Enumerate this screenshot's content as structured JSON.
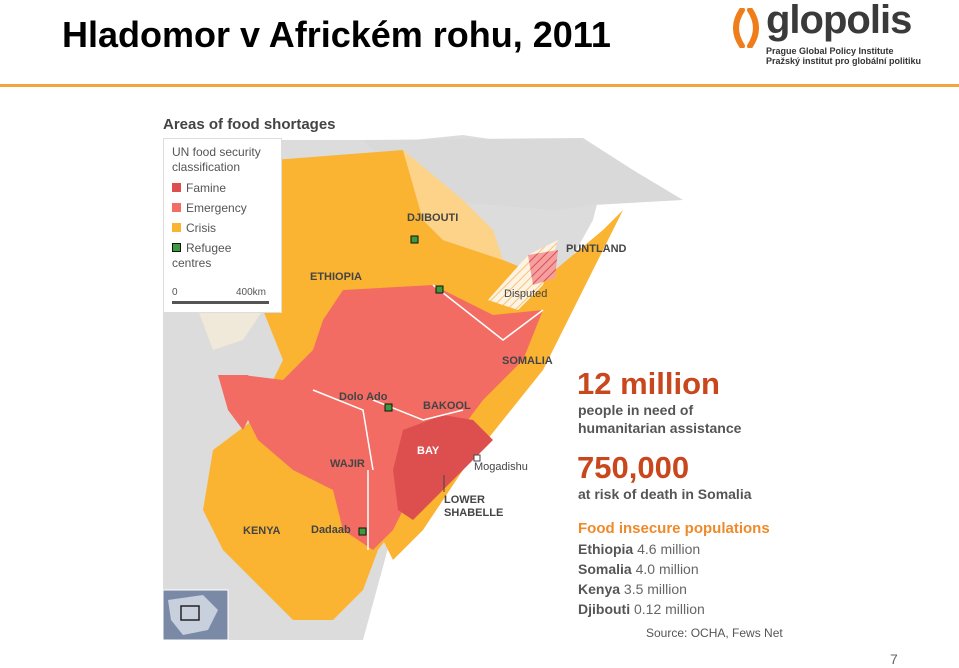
{
  "slide": {
    "title": "Hladomor v Africkém rohu, 2011",
    "page_number": "7"
  },
  "logo": {
    "word": "glopolis",
    "line1": "Prague Global Policy Institute",
    "line2": "Pražský institut pro globální politiku"
  },
  "map": {
    "heading": "Areas of food shortages",
    "legend": {
      "title": "UN food security classification",
      "items": [
        {
          "label": "Famine",
          "color": "#dd4f4f"
        },
        {
          "label": "Emergency",
          "color": "#f26c64"
        },
        {
          "label": "Crisis",
          "color": "#fbb432"
        },
        {
          "label": "Refugee centres",
          "color": "#3c9a3c"
        }
      ],
      "scale_start": "0",
      "scale_end": "400km"
    },
    "regions": {
      "djibouti": "DJIBOUTI",
      "puntland": "PUNTLAND",
      "ethiopia": "ETHIOPIA",
      "disputed": "Disputed",
      "somalia": "SOMALIA",
      "dolo_ado": "Dolo Ado",
      "bakool": "BAKOOL",
      "bay": "BAY",
      "wajir": "WAJIR",
      "mogadishu": "Mogadishu",
      "lower_shabelle_1": "LOWER",
      "lower_shabelle_2": "SHABELLE",
      "kenya": "KENYA",
      "dadaab": "Dadaab"
    },
    "colors": {
      "background": "#d9d9d9",
      "land_other": "#f0e8d8",
      "crisis": "#fbb432",
      "emergency": "#f26c64",
      "famine": "#dd4f4f",
      "somalia_base": "#fdd38a",
      "sea": "#ffffff"
    }
  },
  "stats": {
    "people_number": "12 million",
    "people_line1": "people in need of",
    "people_line2": "humanitarian assistance",
    "death_number": "750,000",
    "death_text": "at risk of death in Somalia",
    "populations_heading": "Food insecure populations",
    "populations": [
      {
        "country": "Ethiopia",
        "value": "4.6 million"
      },
      {
        "country": "Somalia",
        "value": "4.0 million"
      },
      {
        "country": "Kenya",
        "value": "3.5 million"
      },
      {
        "country": "Djibouti",
        "value": "0.12 million"
      }
    ],
    "source": "Source: OCHA, Fews Net"
  }
}
